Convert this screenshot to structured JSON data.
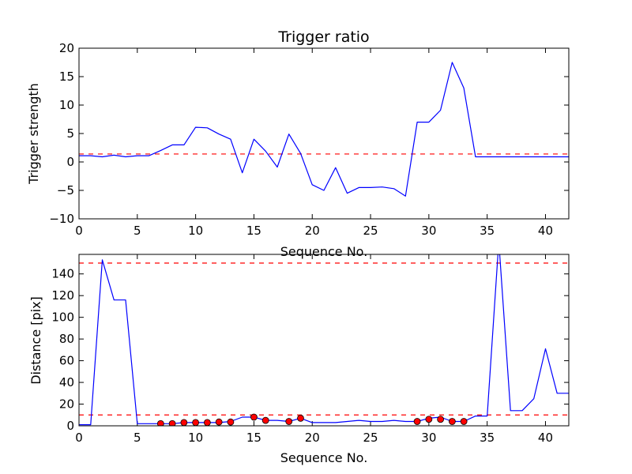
{
  "chart_data": [
    {
      "type": "line",
      "title": "Trigger ratio",
      "xlabel": "Sequence No.",
      "ylabel": "Trigger strength",
      "xlim": [
        0,
        42
      ],
      "ylim": [
        -10,
        20
      ],
      "xticks": [
        0,
        5,
        10,
        15,
        20,
        25,
        30,
        35,
        40
      ],
      "yticks": [
        -10,
        -5,
        0,
        5,
        10,
        15,
        20
      ],
      "xtick_labels": [
        "0",
        "5",
        "10",
        "15",
        "20",
        "25",
        "30",
        "35",
        "40"
      ],
      "ytick_labels": [
        "−10",
        "−5",
        "0",
        "5",
        "10",
        "15",
        "20"
      ],
      "grid": false,
      "series": [
        {
          "color": "#0000ff",
          "style": "solid",
          "x": [
            0,
            1,
            2,
            3,
            4,
            5,
            6,
            7,
            8,
            9,
            10,
            11,
            12,
            13,
            14,
            15,
            16,
            17,
            18,
            19,
            20,
            21,
            22,
            23,
            24,
            25,
            26,
            27,
            28,
            29,
            30,
            31,
            32,
            33,
            34,
            35,
            36,
            37,
            38,
            39,
            40,
            41,
            42
          ],
          "y": [
            1.1,
            1.1,
            0.9,
            1.2,
            0.9,
            1.1,
            1.1,
            2.0,
            3.0,
            3.0,
            6.1,
            6.0,
            4.9,
            4.0,
            -1.9,
            4.0,
            1.9,
            -0.9,
            4.9,
            1.5,
            -4.0,
            -5.0,
            -1.0,
            -5.5,
            -4.5,
            -4.5,
            -4.4,
            -4.7,
            -6.0,
            7.0,
            7.0,
            9.1,
            17.5,
            13.0,
            0.9,
            0.9,
            0.9,
            0.9,
            0.9,
            0.9,
            0.9,
            0.9,
            0.9
          ]
        }
      ],
      "thresholds": [
        {
          "y": 1.4,
          "color": "#ff0000",
          "style": "dashed"
        }
      ]
    },
    {
      "type": "line",
      "title": "",
      "xlabel": "Sequence No.",
      "ylabel": "Distance [pix]",
      "xlim": [
        0,
        42
      ],
      "ylim": [
        0,
        158
      ],
      "xticks": [
        0,
        5,
        10,
        15,
        20,
        25,
        30,
        35,
        40
      ],
      "yticks": [
        0,
        20,
        40,
        60,
        80,
        100,
        120,
        140
      ],
      "xtick_labels": [
        "0",
        "5",
        "10",
        "15",
        "20",
        "25",
        "30",
        "35",
        "40"
      ],
      "ytick_labels": [
        "0",
        "20",
        "40",
        "60",
        "80",
        "100",
        "120",
        "140"
      ],
      "grid": false,
      "series": [
        {
          "color": "#0000ff",
          "style": "solid",
          "x": [
            0,
            1,
            2,
            3,
            4,
            5,
            6,
            7,
            8,
            9,
            10,
            11,
            12,
            13,
            14,
            15,
            16,
            17,
            18,
            19,
            20,
            21,
            22,
            23,
            24,
            25,
            26,
            27,
            28,
            29,
            30,
            31,
            32,
            33,
            34,
            35,
            36,
            37,
            38,
            39,
            40,
            41,
            42
          ],
          "y": [
            1,
            1,
            153,
            116,
            116,
            2,
            2,
            2,
            2,
            3,
            3,
            3,
            3,
            4,
            8,
            8,
            5,
            5,
            4,
            7,
            3,
            3,
            3,
            4,
            5,
            4,
            4,
            5,
            4,
            4,
            7,
            8,
            4,
            4,
            9,
            9,
            170,
            14,
            14,
            25,
            71,
            30,
            30
          ]
        },
        {
          "color": "#ff0000",
          "style": "markers",
          "x": [
            7,
            8,
            9,
            10,
            11,
            12,
            13,
            15,
            16,
            18,
            19,
            29,
            30,
            31,
            32,
            33
          ],
          "y": [
            2,
            2,
            3,
            3,
            3,
            3.5,
            3.5,
            8,
            5,
            4,
            7,
            4,
            6,
            6,
            4,
            4
          ]
        }
      ],
      "thresholds": [
        {
          "y": 150,
          "color": "#ff0000",
          "style": "dashed"
        },
        {
          "y": 10,
          "color": "#ff0000",
          "style": "dashed"
        }
      ]
    }
  ]
}
